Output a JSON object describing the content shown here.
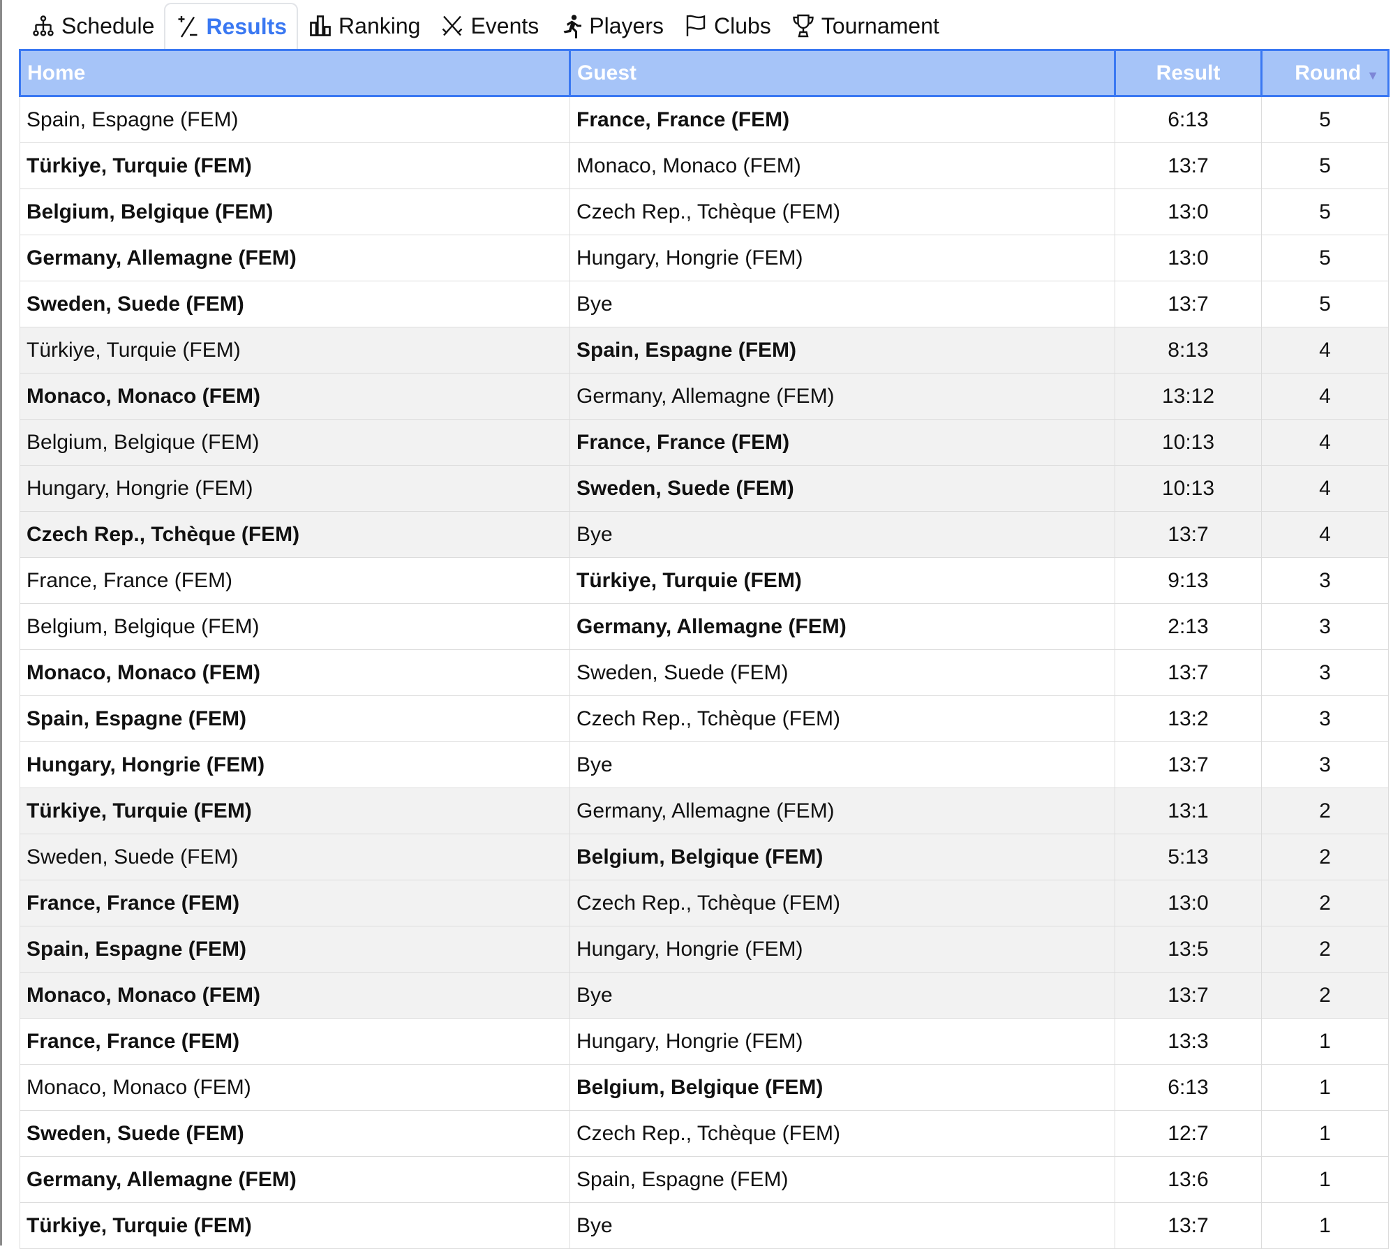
{
  "tabs": [
    {
      "label": "Schedule",
      "icon": "schedule-tree-icon",
      "active": false
    },
    {
      "label": "Results",
      "icon": "plus-minus-icon",
      "active": true
    },
    {
      "label": "Ranking",
      "icon": "bar-chart-icon",
      "active": false
    },
    {
      "label": "Events",
      "icon": "crossed-swords-icon",
      "active": false
    },
    {
      "label": "Players",
      "icon": "running-person-icon",
      "active": false
    },
    {
      "label": "Clubs",
      "icon": "flag-icon",
      "active": false
    },
    {
      "label": "Tournament",
      "icon": "trophy-icon",
      "active": false
    }
  ],
  "colors": {
    "accent": "#3a78f2",
    "header_bg": "#a6c4f8",
    "alt_row": "#f2f2f2"
  },
  "table": {
    "headers": {
      "home": "Home",
      "guest": "Guest",
      "result": "Result",
      "round": "Round"
    },
    "sort_column": "Round",
    "rows": [
      {
        "home": "Spain, Espagne (FEM)",
        "guest": "France, France (FEM)",
        "result": "6:13",
        "round": "5",
        "winner": "guest"
      },
      {
        "home": "Türkiye, Turquie (FEM)",
        "guest": "Monaco, Monaco (FEM)",
        "result": "13:7",
        "round": "5",
        "winner": "home"
      },
      {
        "home": "Belgium, Belgique (FEM)",
        "guest": "Czech Rep., Tchèque (FEM)",
        "result": "13:0",
        "round": "5",
        "winner": "home"
      },
      {
        "home": "Germany, Allemagne (FEM)",
        "guest": "Hungary, Hongrie (FEM)",
        "result": "13:0",
        "round": "5",
        "winner": "home"
      },
      {
        "home": "Sweden, Suede (FEM)",
        "guest": "Bye",
        "result": "13:7",
        "round": "5",
        "winner": "home"
      },
      {
        "home": "Türkiye, Turquie (FEM)",
        "guest": "Spain, Espagne (FEM)",
        "result": "8:13",
        "round": "4",
        "winner": "guest"
      },
      {
        "home": "Monaco, Monaco (FEM)",
        "guest": "Germany, Allemagne (FEM)",
        "result": "13:12",
        "round": "4",
        "winner": "home"
      },
      {
        "home": "Belgium, Belgique (FEM)",
        "guest": "France, France (FEM)",
        "result": "10:13",
        "round": "4",
        "winner": "guest"
      },
      {
        "home": "Hungary, Hongrie (FEM)",
        "guest": "Sweden, Suede (FEM)",
        "result": "10:13",
        "round": "4",
        "winner": "guest"
      },
      {
        "home": "Czech Rep., Tchèque (FEM)",
        "guest": "Bye",
        "result": "13:7",
        "round": "4",
        "winner": "home"
      },
      {
        "home": "France, France (FEM)",
        "guest": "Türkiye, Turquie (FEM)",
        "result": "9:13",
        "round": "3",
        "winner": "guest"
      },
      {
        "home": "Belgium, Belgique (FEM)",
        "guest": "Germany, Allemagne (FEM)",
        "result": "2:13",
        "round": "3",
        "winner": "guest"
      },
      {
        "home": "Monaco, Monaco (FEM)",
        "guest": "Sweden, Suede (FEM)",
        "result": "13:7",
        "round": "3",
        "winner": "home"
      },
      {
        "home": "Spain, Espagne (FEM)",
        "guest": "Czech Rep., Tchèque (FEM)",
        "result": "13:2",
        "round": "3",
        "winner": "home"
      },
      {
        "home": "Hungary, Hongrie (FEM)",
        "guest": "Bye",
        "result": "13:7",
        "round": "3",
        "winner": "home"
      },
      {
        "home": "Türkiye, Turquie (FEM)",
        "guest": "Germany, Allemagne (FEM)",
        "result": "13:1",
        "round": "2",
        "winner": "home"
      },
      {
        "home": "Sweden, Suede (FEM)",
        "guest": "Belgium, Belgique (FEM)",
        "result": "5:13",
        "round": "2",
        "winner": "guest"
      },
      {
        "home": "France, France (FEM)",
        "guest": "Czech Rep., Tchèque (FEM)",
        "result": "13:0",
        "round": "2",
        "winner": "home"
      },
      {
        "home": "Spain, Espagne (FEM)",
        "guest": "Hungary, Hongrie (FEM)",
        "result": "13:5",
        "round": "2",
        "winner": "home"
      },
      {
        "home": "Monaco, Monaco (FEM)",
        "guest": "Bye",
        "result": "13:7",
        "round": "2",
        "winner": "home"
      },
      {
        "home": "France, France (FEM)",
        "guest": "Hungary, Hongrie (FEM)",
        "result": "13:3",
        "round": "1",
        "winner": "home"
      },
      {
        "home": "Monaco, Monaco (FEM)",
        "guest": "Belgium, Belgique (FEM)",
        "result": "6:13",
        "round": "1",
        "winner": "guest"
      },
      {
        "home": "Sweden, Suede (FEM)",
        "guest": "Czech Rep., Tchèque (FEM)",
        "result": "12:7",
        "round": "1",
        "winner": "home"
      },
      {
        "home": "Germany, Allemagne (FEM)",
        "guest": "Spain, Espagne (FEM)",
        "result": "13:6",
        "round": "1",
        "winner": "home"
      },
      {
        "home": "Türkiye, Turquie (FEM)",
        "guest": "Bye",
        "result": "13:7",
        "round": "1",
        "winner": "home"
      }
    ]
  }
}
